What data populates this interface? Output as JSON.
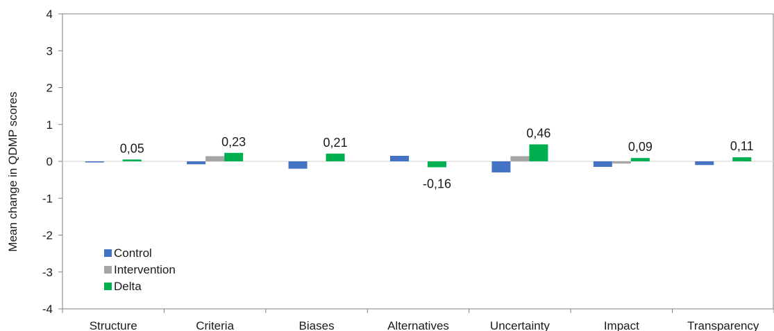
{
  "chart_data": {
    "type": "bar",
    "ylabel": "Mean change in QDMP scores",
    "xlabel": "",
    "ylim": [
      -4,
      4
    ],
    "yticks": [
      "-4",
      "-3",
      "-2",
      "-1",
      "0",
      "1",
      "2",
      "3",
      "4"
    ],
    "grid": false,
    "legend_position": "bottom-left",
    "categories": [
      "Structure",
      "Criteria",
      "Biases",
      "Alternatives",
      "Uncertainty",
      "Impact",
      "Transparency"
    ],
    "series": [
      {
        "name": "Control",
        "color": "#4472c4",
        "values": [
          -0.03,
          -0.08,
          -0.2,
          0.15,
          -0.3,
          -0.15,
          -0.1
        ]
      },
      {
        "name": "Intervention",
        "color": "#a5a5a5",
        "values": [
          0.0,
          0.14,
          0.0,
          0.0,
          0.14,
          -0.06,
          0.0
        ]
      },
      {
        "name": "Delta",
        "color": "#00b050",
        "values": [
          0.05,
          0.23,
          0.21,
          -0.16,
          0.46,
          0.09,
          0.11
        ]
      }
    ],
    "data_labels": [
      "0,05",
      "0,23",
      "0,21",
      "-0,16",
      "0,46",
      "0,09",
      "0,11"
    ]
  }
}
